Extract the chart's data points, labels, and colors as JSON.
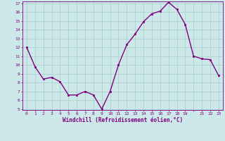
{
  "x": [
    0,
    1,
    2,
    3,
    4,
    5,
    6,
    7,
    8,
    9,
    10,
    11,
    12,
    13,
    14,
    15,
    16,
    17,
    18,
    19,
    20,
    21,
    22,
    23
  ],
  "y": [
    12,
    9.8,
    8.4,
    8.6,
    8.1,
    6.6,
    6.6,
    7.0,
    6.6,
    5.0,
    7.0,
    10.0,
    12.3,
    13.5,
    14.9,
    15.8,
    16.1,
    17.1,
    16.3,
    14.6,
    11.0,
    10.7,
    10.6,
    8.8
  ],
  "xlabel": "Windchill (Refroidissement éolien,°C)",
  "ylim": [
    5,
    17
  ],
  "xlim": [
    -0.5,
    23.5
  ],
  "yticks": [
    5,
    6,
    7,
    8,
    9,
    10,
    11,
    12,
    13,
    14,
    15,
    16,
    17
  ],
  "xticks": [
    0,
    1,
    2,
    3,
    4,
    5,
    6,
    7,
    8,
    9,
    10,
    11,
    12,
    13,
    14,
    15,
    16,
    17,
    18,
    19,
    20,
    21,
    22,
    23
  ],
  "xtick_labels": [
    "0",
    "1",
    "2",
    "3",
    "4",
    "5",
    "6",
    "7",
    "8",
    "9",
    "10",
    "11",
    "12",
    "13",
    "14",
    "15",
    "16",
    "17",
    "18",
    "19",
    "",
    "21",
    "22",
    "23"
  ],
  "line_color": "#800080",
  "marker": "s",
  "marker_size": 2.0,
  "bg_color": "#cce8e8",
  "grid_color": "#aacccc",
  "axis_color": "#800080",
  "tick_color": "#800080",
  "label_color": "#800080",
  "line_width": 1.0,
  "tick_fontsize": 4.5,
  "xlabel_fontsize": 5.5
}
